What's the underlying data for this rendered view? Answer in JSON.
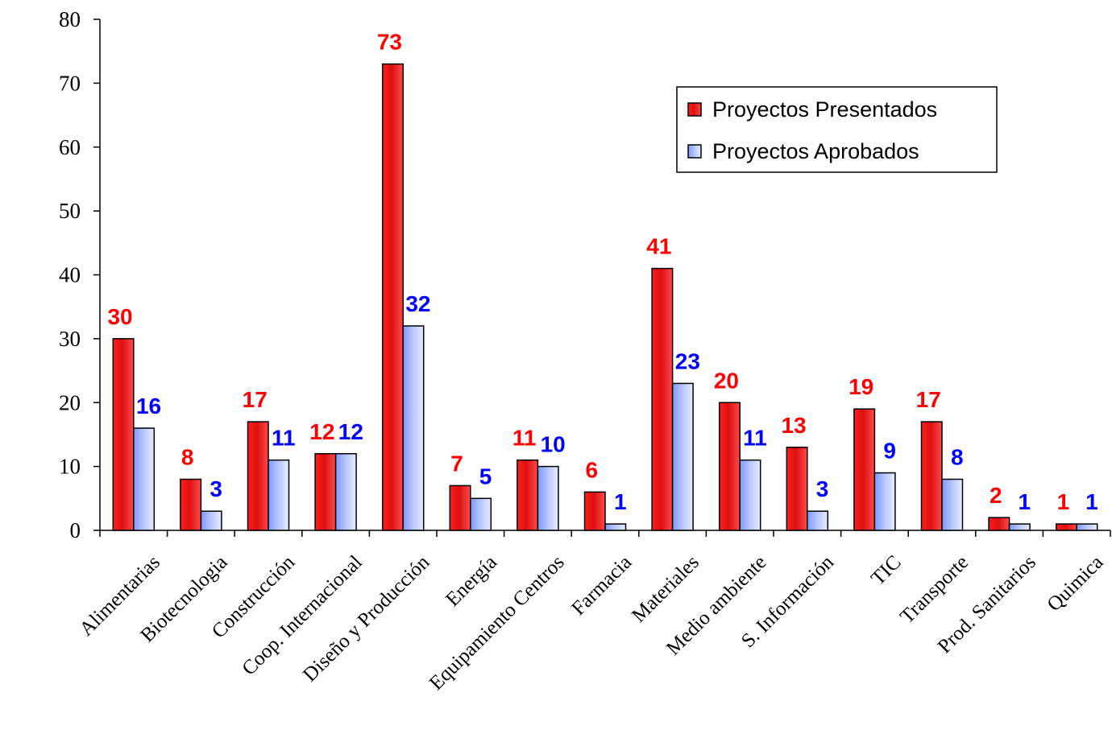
{
  "chart_data": {
    "type": "bar",
    "categories": [
      "Alimentarias",
      "Biotecnologia",
      "Construcción",
      "Coop. Internacional",
      "Diseño y Producción",
      "Energía",
      "Equipamiento Centros",
      "Farmacia",
      "Materiales",
      "Medio ambiente",
      "S. Información",
      "TIC",
      "Transporte",
      "Prod. Sanitarios",
      "Quimica"
    ],
    "series": [
      {
        "name": "Proyectos Presentados",
        "values": [
          30,
          8,
          17,
          12,
          73,
          7,
          11,
          6,
          41,
          20,
          13,
          19,
          17,
          2,
          1
        ],
        "color": "#ff2020",
        "label_color": "#ff0000"
      },
      {
        "name": "Proyectos Aprobados",
        "values": [
          16,
          3,
          11,
          12,
          32,
          5,
          10,
          1,
          23,
          11,
          3,
          9,
          8,
          1,
          1
        ],
        "color": "#8fa8ff",
        "label_color": "#0000ff"
      }
    ],
    "y_ticks": [
      "0",
      "10",
      "20",
      "30",
      "40",
      "50",
      "60",
      "70",
      "80"
    ],
    "ylim": [
      0,
      80
    ],
    "grid": false,
    "legend_position": "top-right",
    "title": "",
    "xlabel": "",
    "ylabel": ""
  }
}
